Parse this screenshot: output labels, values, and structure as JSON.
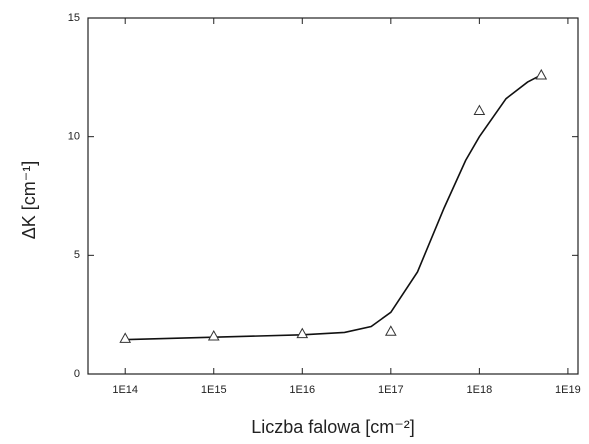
{
  "chart_data": {
    "type": "scatter",
    "x_label": "Liczba falowa [cm⁻²]",
    "y_label": "ΔK [cm⁻¹]",
    "x": [
      100000000000000.0,
      1000000000000000.0,
      1e+16,
      1e+17,
      1e+18,
      5e+18
    ],
    "values": [
      1.5,
      1.6,
      1.7,
      1.8,
      11.1,
      12.6
    ],
    "color": "#333333",
    "fit": {
      "x": [
        100000000000000.0,
        1000000000000000.0,
        1e+16,
        3e+16,
        6e+16,
        1e+17,
        2e+17,
        4e+17,
        7e+17,
        1e+18,
        2e+18,
        3.5e+18,
        5e+18
      ],
      "values": [
        1.45,
        1.55,
        1.65,
        1.75,
        2.0,
        2.6,
        4.3,
        7.0,
        9.0,
        10.0,
        11.6,
        12.3,
        12.6
      ]
    },
    "xscale": "log",
    "xlim": [
      38000000000000.0,
      1.3e+19
    ],
    "ylim": [
      0,
      15
    ],
    "xticks": [
      {
        "value": 100000000000000.0,
        "label": "1E14"
      },
      {
        "value": 1000000000000000.0,
        "label": "1E15"
      },
      {
        "value": 1e+16,
        "label": "1E16"
      },
      {
        "value": 1e+17,
        "label": "1E17"
      },
      {
        "value": 1e+18,
        "label": "1E18"
      },
      {
        "value": 1e+19,
        "label": "1E19"
      }
    ],
    "yticks": [
      0,
      5,
      10,
      15
    ]
  }
}
